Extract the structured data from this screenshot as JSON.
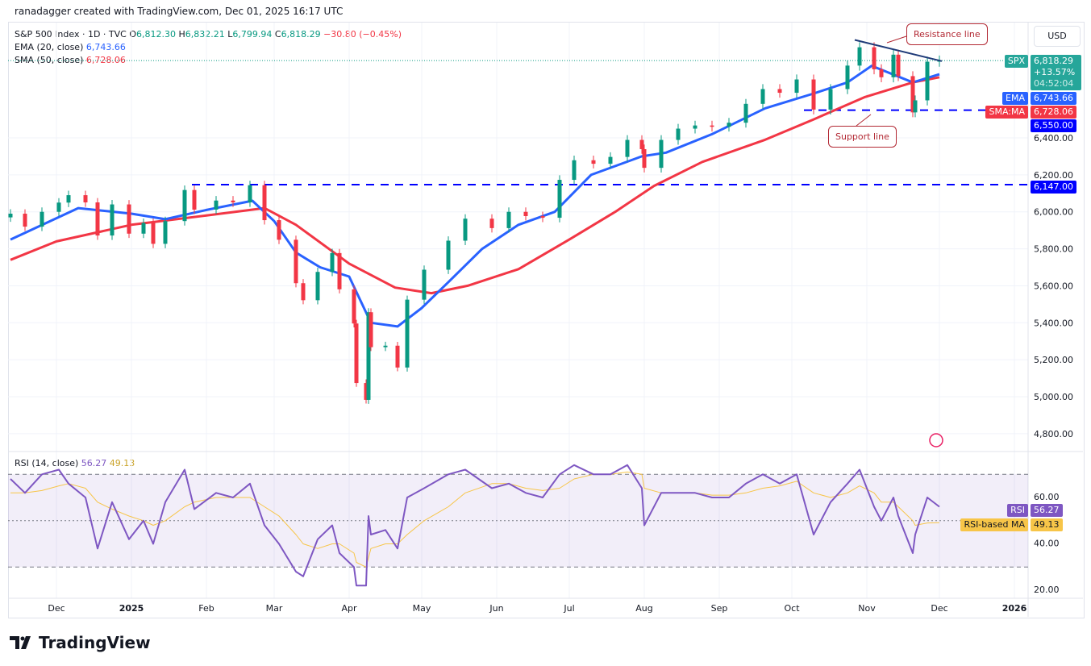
{
  "credit": "ranadagger created with TradingView.com, Dec 01, 2025 16:17 UTC",
  "legend": {
    "symbol": "S&P 500 Index · 1D · TVC",
    "o_label": "O",
    "o": "6,812.30",
    "h_label": "H",
    "h": "6,832.21",
    "l_label": "L",
    "l": "6,799.94",
    "c_label": "C",
    "c": "6,818.29",
    "change": "−30.80 (−0.45%)",
    "ema": "EMA (20, close)",
    "ema_val": "6,743.66",
    "sma": "SMA (50, close)",
    "sma_val": "6,728.06",
    "rsi": "RSI (14, close)",
    "rsi_val": "56.27",
    "rsi_ma_val": "49.13"
  },
  "currency": "USD",
  "price_tags": {
    "spx_label": "SPX",
    "spx": "6,818.29",
    "pct": "+13.57%",
    "countdown": "04:52:04",
    "ema_label": "EMA",
    "ema": "6,743.66",
    "sma_label": "SMA:MA",
    "sma": "6,728.06",
    "support": "6,550.00",
    "level2": "6,147.00",
    "rsi_label": "RSI",
    "rsi": "56.27",
    "rsi_ma_label": "RSI-based MA",
    "rsi_ma": "49.13"
  },
  "annotations": {
    "resistance": "Resistance line",
    "support": "Support line"
  },
  "brand": "TradingView",
  "colors": {
    "up": "#089981",
    "down": "#f23645",
    "ema": "#2962ff",
    "sma": "#f23645",
    "rsi": "#7e57c2",
    "rsi_ma": "#f7c548",
    "level": "#0000ff",
    "resistance": "#1e3a78"
  },
  "chart_data": {
    "type": "candlestick",
    "y_ticks": [
      "6,400.00",
      "6,200.00",
      "6,000.00",
      "5,800.00",
      "5,600.00",
      "5,400.00",
      "5,200.00",
      "5,000.00",
      "4,800.00"
    ],
    "y_tick_values": [
      6400,
      6200,
      6000,
      5800,
      5600,
      5400,
      5200,
      5000,
      4800
    ],
    "x_ticks": [
      "Dec",
      "2025",
      "Feb",
      "Mar",
      "Apr",
      "May",
      "Jun",
      "Jul",
      "Aug",
      "Sep",
      "Oct",
      "Nov",
      "Dec",
      "2026"
    ],
    "x_tick_dates": [
      "2024-12-01",
      "2025-01-01",
      "2025-02-01",
      "2025-03-01",
      "2025-04-01",
      "2025-05-01",
      "2025-06-01",
      "2025-07-01",
      "2025-08-01",
      "2025-09-01",
      "2025-10-01",
      "2025-11-01",
      "2025-12-01",
      "2026-01-01"
    ],
    "dates": [
      "2024-11-12",
      "2024-11-18",
      "2024-11-25",
      "2024-12-02",
      "2024-12-06",
      "2024-12-13",
      "2024-12-18",
      "2024-12-24",
      "2024-12-31",
      "2025-01-06",
      "2025-01-10",
      "2025-01-15",
      "2025-01-23",
      "2025-01-27",
      "2025-02-05",
      "2025-02-12",
      "2025-02-19",
      "2025-02-25",
      "2025-03-03",
      "2025-03-10",
      "2025-03-13",
      "2025-03-19",
      "2025-03-25",
      "2025-03-28",
      "2025-04-03",
      "2025-04-04",
      "2025-04-08",
      "2025-04-09",
      "2025-04-10",
      "2025-04-16",
      "2025-04-21",
      "2025-04-25",
      "2025-05-02",
      "2025-05-12",
      "2025-05-19",
      "2025-05-30",
      "2025-06-06",
      "2025-06-13",
      "2025-06-20",
      "2025-06-27",
      "2025-07-03",
      "2025-07-11",
      "2025-07-18",
      "2025-07-25",
      "2025-07-31",
      "2025-08-01",
      "2025-08-08",
      "2025-08-15",
      "2025-08-22",
      "2025-08-29",
      "2025-09-05",
      "2025-09-12",
      "2025-09-19",
      "2025-09-26",
      "2025-10-03",
      "2025-10-10",
      "2025-10-17",
      "2025-10-24",
      "2025-10-29",
      "2025-11-04",
      "2025-11-07",
      "2025-11-12",
      "2025-11-14",
      "2025-11-20",
      "2025-11-21",
      "2025-11-26",
      "2025-12-01"
    ],
    "close": [
      5990,
      5920,
      6000,
      6050,
      6090,
      6051,
      5872,
      6040,
      5882,
      5940,
      5827,
      5950,
      6118,
      6012,
      6061,
      6051,
      6144,
      5955,
      5849,
      5614,
      5522,
      5675,
      5777,
      5581,
      5396,
      5074,
      4983,
      5457,
      5268,
      5276,
      5158,
      5525,
      5687,
      5844,
      5963,
      5912,
      6000,
      5977,
      5968,
      6173,
      6279,
      6260,
      6297,
      6389,
      6339,
      6238,
      6389,
      6450,
      6467,
      6460,
      6482,
      6584,
      6664,
      6644,
      6716,
      6553,
      6664,
      6791,
      6890,
      6771,
      6728,
      6850,
      6734,
      6538,
      6603,
      6812,
      6818
    ],
    "ema20": {
      "dates": [
        "2024-11-12",
        "2024-12-10",
        "2025-01-01",
        "2025-01-15",
        "2025-02-01",
        "2025-02-20",
        "2025-03-01",
        "2025-03-10",
        "2025-03-20",
        "2025-04-01",
        "2025-04-10",
        "2025-04-21",
        "2025-05-01",
        "2025-05-12",
        "2025-05-26",
        "2025-06-10",
        "2025-06-25",
        "2025-07-10",
        "2025-07-31",
        "2025-08-10",
        "2025-08-29",
        "2025-09-20",
        "2025-10-10",
        "2025-10-24",
        "2025-11-03",
        "2025-11-20",
        "2025-12-01"
      ],
      "values": [
        5850,
        6020,
        5990,
        5960,
        6010,
        6060,
        5950,
        5780,
        5700,
        5650,
        5400,
        5380,
        5480,
        5620,
        5800,
        5930,
        6000,
        6200,
        6300,
        6320,
        6420,
        6560,
        6640,
        6700,
        6790,
        6700,
        6744
      ]
    },
    "sma50": {
      "dates": [
        "2024-11-12",
        "2024-12-01",
        "2025-01-01",
        "2025-02-01",
        "2025-02-25",
        "2025-03-10",
        "2025-04-01",
        "2025-04-20",
        "2025-05-05",
        "2025-05-20",
        "2025-06-10",
        "2025-07-01",
        "2025-07-20",
        "2025-08-05",
        "2025-08-25",
        "2025-09-20",
        "2025-10-10",
        "2025-10-31",
        "2025-11-20",
        "2025-12-01"
      ],
      "values": [
        5740,
        5840,
        5930,
        5980,
        6020,
        5930,
        5720,
        5590,
        5560,
        5600,
        5690,
        5850,
        6000,
        6140,
        6270,
        6390,
        6500,
        6620,
        6700,
        6728
      ]
    },
    "levels": [
      {
        "value": 6550,
        "label": "6,550.00",
        "from": "2025-10-06"
      },
      {
        "value": 6147,
        "label": "6,147.00",
        "from": "2025-01-26"
      }
    ],
    "resistance_line": {
      "from": [
        "2025-10-27",
        6930
      ],
      "to": [
        "2025-12-02",
        6815
      ]
    },
    "rsi": {
      "y_ticks": [
        "60.00",
        "40.00",
        "20.00"
      ],
      "y_tick_values": [
        60,
        40,
        20
      ],
      "bands": [
        70,
        50,
        30
      ],
      "values": [
        68,
        62,
        70,
        72,
        66,
        60,
        38,
        58,
        42,
        50,
        40,
        58,
        72,
        55,
        62,
        60,
        66,
        48,
        40,
        28,
        26,
        42,
        48,
        36,
        30,
        22,
        22,
        52,
        44,
        46,
        38,
        60,
        64,
        70,
        72,
        64,
        66,
        62,
        60,
        70,
        74,
        70,
        70,
        74,
        64,
        48,
        62,
        62,
        62,
        60,
        60,
        66,
        70,
        66,
        70,
        44,
        58,
        66,
        72,
        56,
        50,
        60,
        52,
        36,
        44,
        60,
        56
      ],
      "ma": [
        62,
        62,
        63,
        65,
        66,
        64,
        58,
        55,
        52,
        50,
        48,
        50,
        56,
        58,
        60,
        60,
        60,
        56,
        52,
        44,
        40,
        38,
        40,
        40,
        36,
        32,
        30,
        34,
        38,
        40,
        40,
        44,
        50,
        56,
        62,
        66,
        66,
        64,
        63,
        64,
        68,
        70,
        70,
        71,
        70,
        64,
        62,
        62,
        62,
        61,
        61,
        62,
        64,
        65,
        67,
        62,
        60,
        62,
        65,
        62,
        58,
        58,
        56,
        50,
        48,
        49,
        49.13
      ]
    }
  }
}
